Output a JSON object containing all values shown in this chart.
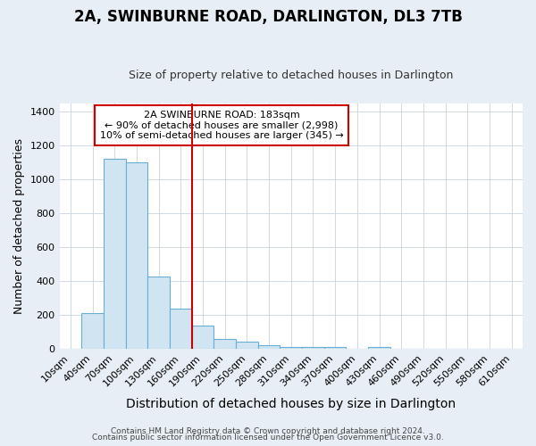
{
  "title": "2A, SWINBURNE ROAD, DARLINGTON, DL3 7TB",
  "subtitle": "Size of property relative to detached houses in Darlington",
  "xlabel": "Distribution of detached houses by size in Darlington",
  "ylabel": "Number of detached properties",
  "footnote1": "Contains HM Land Registry data © Crown copyright and database right 2024.",
  "footnote2": "Contains public sector information licensed under the Open Government Licence v3.0.",
  "bar_labels": [
    "10sqm",
    "40sqm",
    "70sqm",
    "100sqm",
    "130sqm",
    "160sqm",
    "190sqm",
    "220sqm",
    "250sqm",
    "280sqm",
    "310sqm",
    "340sqm",
    "370sqm",
    "400sqm",
    "430sqm",
    "460sqm",
    "490sqm",
    "520sqm",
    "550sqm",
    "580sqm",
    "610sqm"
  ],
  "bar_values": [
    0,
    210,
    1120,
    1100,
    425,
    240,
    140,
    60,
    45,
    20,
    10,
    10,
    10,
    0,
    10,
    0,
    0,
    0,
    0,
    0,
    0
  ],
  "bar_color": "#d0e4f2",
  "bar_edge_color": "#6aaed6",
  "annotation_line1": "2A SWINBURNE ROAD: 183sqm",
  "annotation_line2": "← 90% of detached houses are smaller (2,998)",
  "annotation_line3": "10% of semi-detached houses are larger (345) →",
  "annotation_box_color": "#ffffff",
  "annotation_box_edge": "#cc0000",
  "vline_color": "#cc0000",
  "vline_x_index": 6,
  "ylim": [
    0,
    1450
  ],
  "yticks": [
    0,
    200,
    400,
    600,
    800,
    1000,
    1200,
    1400
  ],
  "background_color": "#e8eef5",
  "plot_bg_color": "#ffffff",
  "grid_color": "#c8d4df",
  "title_fontsize": 12,
  "subtitle_fontsize": 9,
  "xlabel_fontsize": 10,
  "ylabel_fontsize": 9,
  "tick_fontsize": 8,
  "annotation_fontsize": 8
}
